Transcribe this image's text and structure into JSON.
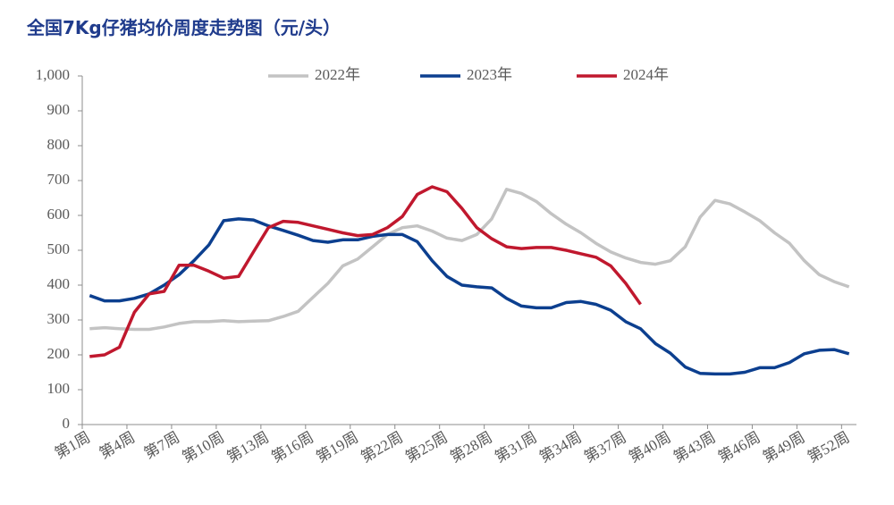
{
  "chart_data": {
    "type": "line",
    "title": "全国7Kg仔猪均价周度走势图（元/头）",
    "categories": [
      "第1周",
      null,
      null,
      "第4周",
      null,
      null,
      "第7周",
      null,
      null,
      "第10周",
      null,
      null,
      "第13周",
      null,
      null,
      "第16周",
      null,
      null,
      "第19周",
      null,
      null,
      "第22周",
      null,
      null,
      "第25周",
      null,
      null,
      "第28周",
      null,
      null,
      "第31周",
      null,
      null,
      "第34周",
      null,
      null,
      "第37周",
      null,
      null,
      "第40周",
      null,
      null,
      "第43周",
      null,
      null,
      "第46周",
      null,
      null,
      "第49周",
      null,
      null,
      "第52周"
    ],
    "series": [
      {
        "name": "2022年",
        "color": "#c3c3c3",
        "values": [
          275,
          278,
          275,
          273,
          273,
          280,
          290,
          295,
          295,
          298,
          295,
          297,
          298,
          310,
          325,
          365,
          405,
          455,
          475,
          510,
          545,
          565,
          570,
          555,
          535,
          528,
          545,
          590,
          675,
          663,
          640,
          605,
          575,
          550,
          520,
          495,
          478,
          465,
          460,
          470,
          510,
          595,
          643,
          633,
          610,
          585,
          550,
          520,
          470,
          430,
          410,
          395
        ]
      },
      {
        "name": "2023年",
        "color": "#0c3f8f",
        "values": [
          370,
          355,
          355,
          362,
          375,
          400,
          430,
          470,
          515,
          585,
          590,
          587,
          570,
          557,
          543,
          528,
          523,
          530,
          530,
          540,
          545,
          545,
          525,
          470,
          425,
          400,
          395,
          392,
          362,
          340,
          335,
          335,
          350,
          353,
          345,
          328,
          295,
          275,
          232,
          205,
          165,
          147,
          145,
          145,
          150,
          163,
          163,
          178,
          203,
          213,
          215,
          203
        ]
      },
      {
        "name": "2024年",
        "color": "#c0182e",
        "values": [
          195,
          200,
          222,
          322,
          375,
          382,
          457,
          457,
          440,
          420,
          425,
          495,
          565,
          583,
          580,
          570,
          560,
          550,
          542,
          545,
          565,
          597,
          660,
          682,
          668,
          620,
          565,
          533,
          510,
          505,
          508,
          508,
          500,
          490,
          480,
          455,
          405,
          345,
          null,
          null,
          null,
          null,
          null,
          null,
          null,
          null,
          null,
          null,
          null,
          null,
          null,
          null
        ]
      }
    ],
    "ylim": [
      0,
      1000
    ],
    "yticks": [
      0,
      100,
      200,
      300,
      400,
      500,
      600,
      700,
      800,
      900,
      {
        "value": 1000,
        "label": "1,000"
      }
    ]
  }
}
